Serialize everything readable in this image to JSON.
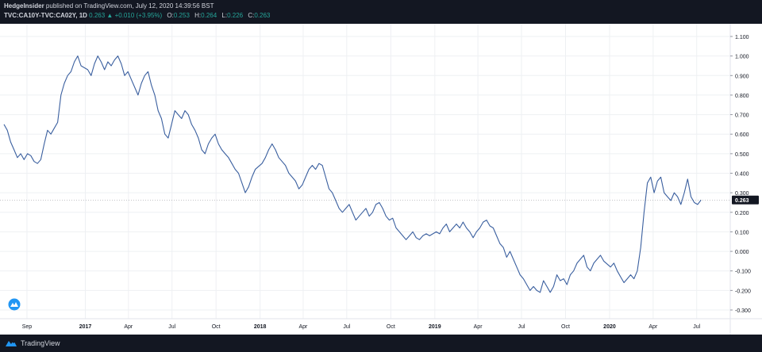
{
  "header": {
    "author": "HedgeInsider",
    "published": "published on TradingView.com, July 12, 2020 14:39:56 BST",
    "symbol": "TVC:CA10Y-TVC:CA02Y, 1D",
    "last": "0.263",
    "change_arrow": "▲",
    "change": "+0.010 (+3.95%)",
    "open_label": "O:",
    "open": "0.253",
    "high_label": "H:",
    "high": "0.264",
    "low_label": "L:",
    "low": "0.226",
    "close_label": "C:",
    "close": "0.263"
  },
  "footer": {
    "brand": "TradingView",
    "logo_icon": "tradingview-logo-icon"
  },
  "colors": {
    "line": "#3a5f9f",
    "up": "#26a69a",
    "price_tag": "#131722",
    "background": "#131722",
    "plot": "#ffffff",
    "grid": "#eef0f3"
  },
  "chart_data": {
    "type": "line",
    "series": [
      {
        "values": [
          [
            "2016-07-15",
            0.65
          ],
          [
            "2016-07-22",
            0.62
          ],
          [
            "2016-07-29",
            0.56
          ],
          [
            "2016-08-05",
            0.52
          ],
          [
            "2016-08-12",
            0.48
          ],
          [
            "2016-08-19",
            0.5
          ],
          [
            "2016-08-26",
            0.47
          ],
          [
            "2016-09-02",
            0.5
          ],
          [
            "2016-09-09",
            0.49
          ],
          [
            "2016-09-16",
            0.46
          ],
          [
            "2016-09-23",
            0.45
          ],
          [
            "2016-09-30",
            0.47
          ],
          [
            "2016-10-07",
            0.55
          ],
          [
            "2016-10-14",
            0.62
          ],
          [
            "2016-10-21",
            0.6
          ],
          [
            "2016-10-28",
            0.63
          ],
          [
            "2016-11-04",
            0.66
          ],
          [
            "2016-11-11",
            0.8
          ],
          [
            "2016-11-18",
            0.86
          ],
          [
            "2016-11-25",
            0.9
          ],
          [
            "2016-12-02",
            0.92
          ],
          [
            "2016-12-09",
            0.97
          ],
          [
            "2016-12-16",
            1.0
          ],
          [
            "2016-12-23",
            0.95
          ],
          [
            "2017-01-06",
            0.93
          ],
          [
            "2017-01-13",
            0.9
          ],
          [
            "2017-01-20",
            0.96
          ],
          [
            "2017-01-27",
            1.0
          ],
          [
            "2017-02-03",
            0.97
          ],
          [
            "2017-02-10",
            0.93
          ],
          [
            "2017-02-17",
            0.97
          ],
          [
            "2017-02-24",
            0.95
          ],
          [
            "2017-03-03",
            0.98
          ],
          [
            "2017-03-10",
            1.0
          ],
          [
            "2017-03-17",
            0.96
          ],
          [
            "2017-03-24",
            0.9
          ],
          [
            "2017-03-31",
            0.92
          ],
          [
            "2017-04-07",
            0.88
          ],
          [
            "2017-04-14",
            0.84
          ],
          [
            "2017-04-21",
            0.8
          ],
          [
            "2017-04-28",
            0.86
          ],
          [
            "2017-05-05",
            0.9
          ],
          [
            "2017-05-12",
            0.92
          ],
          [
            "2017-05-19",
            0.85
          ],
          [
            "2017-05-26",
            0.8
          ],
          [
            "2017-06-02",
            0.72
          ],
          [
            "2017-06-09",
            0.68
          ],
          [
            "2017-06-16",
            0.6
          ],
          [
            "2017-06-23",
            0.58
          ],
          [
            "2017-06-30",
            0.65
          ],
          [
            "2017-07-07",
            0.72
          ],
          [
            "2017-07-14",
            0.7
          ],
          [
            "2017-07-21",
            0.68
          ],
          [
            "2017-07-28",
            0.72
          ],
          [
            "2017-08-04",
            0.7
          ],
          [
            "2017-08-11",
            0.65
          ],
          [
            "2017-08-18",
            0.62
          ],
          [
            "2017-08-25",
            0.58
          ],
          [
            "2017-09-01",
            0.52
          ],
          [
            "2017-09-08",
            0.5
          ],
          [
            "2017-09-15",
            0.55
          ],
          [
            "2017-09-22",
            0.58
          ],
          [
            "2017-09-29",
            0.6
          ],
          [
            "2017-10-06",
            0.55
          ],
          [
            "2017-10-13",
            0.52
          ],
          [
            "2017-10-20",
            0.5
          ],
          [
            "2017-10-27",
            0.48
          ],
          [
            "2017-11-03",
            0.45
          ],
          [
            "2017-11-10",
            0.42
          ],
          [
            "2017-11-17",
            0.4
          ],
          [
            "2017-11-24",
            0.35
          ],
          [
            "2017-12-01",
            0.3
          ],
          [
            "2017-12-08",
            0.33
          ],
          [
            "2017-12-15",
            0.38
          ],
          [
            "2017-12-22",
            0.42
          ],
          [
            "2018-01-05",
            0.45
          ],
          [
            "2018-01-12",
            0.48
          ],
          [
            "2018-01-19",
            0.52
          ],
          [
            "2018-01-26",
            0.55
          ],
          [
            "2018-02-02",
            0.52
          ],
          [
            "2018-02-09",
            0.48
          ],
          [
            "2018-02-16",
            0.46
          ],
          [
            "2018-02-23",
            0.44
          ],
          [
            "2018-03-02",
            0.4
          ],
          [
            "2018-03-09",
            0.38
          ],
          [
            "2018-03-16",
            0.36
          ],
          [
            "2018-03-23",
            0.32
          ],
          [
            "2018-03-30",
            0.34
          ],
          [
            "2018-04-06",
            0.38
          ],
          [
            "2018-04-13",
            0.42
          ],
          [
            "2018-04-20",
            0.44
          ],
          [
            "2018-04-27",
            0.42
          ],
          [
            "2018-05-04",
            0.45
          ],
          [
            "2018-05-11",
            0.44
          ],
          [
            "2018-05-18",
            0.38
          ],
          [
            "2018-05-25",
            0.32
          ],
          [
            "2018-06-01",
            0.3
          ],
          [
            "2018-06-08",
            0.26
          ],
          [
            "2018-06-15",
            0.22
          ],
          [
            "2018-06-22",
            0.2
          ],
          [
            "2018-06-29",
            0.22
          ],
          [
            "2018-07-06",
            0.24
          ],
          [
            "2018-07-13",
            0.2
          ],
          [
            "2018-07-20",
            0.16
          ],
          [
            "2018-07-27",
            0.18
          ],
          [
            "2018-08-03",
            0.2
          ],
          [
            "2018-08-10",
            0.22
          ],
          [
            "2018-08-17",
            0.18
          ],
          [
            "2018-08-24",
            0.2
          ],
          [
            "2018-08-31",
            0.24
          ],
          [
            "2018-09-07",
            0.25
          ],
          [
            "2018-09-14",
            0.22
          ],
          [
            "2018-09-21",
            0.18
          ],
          [
            "2018-09-28",
            0.16
          ],
          [
            "2018-10-05",
            0.17
          ],
          [
            "2018-10-12",
            0.12
          ],
          [
            "2018-10-19",
            0.1
          ],
          [
            "2018-10-26",
            0.08
          ],
          [
            "2018-11-02",
            0.06
          ],
          [
            "2018-11-09",
            0.08
          ],
          [
            "2018-11-16",
            0.1
          ],
          [
            "2018-11-23",
            0.07
          ],
          [
            "2018-11-30",
            0.06
          ],
          [
            "2018-12-07",
            0.08
          ],
          [
            "2018-12-14",
            0.09
          ],
          [
            "2018-12-21",
            0.08
          ],
          [
            "2019-01-04",
            0.1
          ],
          [
            "2019-01-11",
            0.09
          ],
          [
            "2019-01-18",
            0.12
          ],
          [
            "2019-01-25",
            0.14
          ],
          [
            "2019-02-01",
            0.1
          ],
          [
            "2019-02-08",
            0.12
          ],
          [
            "2019-02-15",
            0.14
          ],
          [
            "2019-02-22",
            0.12
          ],
          [
            "2019-03-01",
            0.15
          ],
          [
            "2019-03-08",
            0.12
          ],
          [
            "2019-03-15",
            0.1
          ],
          [
            "2019-03-22",
            0.07
          ],
          [
            "2019-03-29",
            0.1
          ],
          [
            "2019-04-05",
            0.12
          ],
          [
            "2019-04-12",
            0.15
          ],
          [
            "2019-04-19",
            0.16
          ],
          [
            "2019-04-26",
            0.13
          ],
          [
            "2019-05-03",
            0.12
          ],
          [
            "2019-05-10",
            0.08
          ],
          [
            "2019-05-17",
            0.04
          ],
          [
            "2019-05-24",
            0.02
          ],
          [
            "2019-05-31",
            -0.03
          ],
          [
            "2019-06-07",
            0.0
          ],
          [
            "2019-06-14",
            -0.04
          ],
          [
            "2019-06-21",
            -0.08
          ],
          [
            "2019-06-28",
            -0.12
          ],
          [
            "2019-07-05",
            -0.14
          ],
          [
            "2019-07-12",
            -0.17
          ],
          [
            "2019-07-19",
            -0.2
          ],
          [
            "2019-07-26",
            -0.18
          ],
          [
            "2019-08-02",
            -0.2
          ],
          [
            "2019-08-09",
            -0.21
          ],
          [
            "2019-08-16",
            -0.15
          ],
          [
            "2019-08-23",
            -0.18
          ],
          [
            "2019-08-30",
            -0.21
          ],
          [
            "2019-09-06",
            -0.18
          ],
          [
            "2019-09-13",
            -0.12
          ],
          [
            "2019-09-20",
            -0.15
          ],
          [
            "2019-09-27",
            -0.14
          ],
          [
            "2019-10-04",
            -0.17
          ],
          [
            "2019-10-11",
            -0.12
          ],
          [
            "2019-10-18",
            -0.1
          ],
          [
            "2019-10-25",
            -0.06
          ],
          [
            "2019-11-01",
            -0.04
          ],
          [
            "2019-11-08",
            -0.02
          ],
          [
            "2019-11-15",
            -0.08
          ],
          [
            "2019-11-22",
            -0.1
          ],
          [
            "2019-11-29",
            -0.06
          ],
          [
            "2019-12-06",
            -0.04
          ],
          [
            "2019-12-13",
            -0.02
          ],
          [
            "2019-12-20",
            -0.05
          ],
          [
            "2020-01-03",
            -0.08
          ],
          [
            "2020-01-10",
            -0.06
          ],
          [
            "2020-01-17",
            -0.1
          ],
          [
            "2020-01-24",
            -0.13
          ],
          [
            "2020-01-31",
            -0.16
          ],
          [
            "2020-02-07",
            -0.14
          ],
          [
            "2020-02-14",
            -0.12
          ],
          [
            "2020-02-21",
            -0.14
          ],
          [
            "2020-02-28",
            -0.1
          ],
          [
            "2020-03-06",
            0.02
          ],
          [
            "2020-03-13",
            0.2
          ],
          [
            "2020-03-20",
            0.35
          ],
          [
            "2020-03-27",
            0.38
          ],
          [
            "2020-04-03",
            0.3
          ],
          [
            "2020-04-10",
            0.36
          ],
          [
            "2020-04-17",
            0.38
          ],
          [
            "2020-04-24",
            0.3
          ],
          [
            "2020-05-01",
            0.28
          ],
          [
            "2020-05-08",
            0.26
          ],
          [
            "2020-05-15",
            0.3
          ],
          [
            "2020-05-22",
            0.28
          ],
          [
            "2020-05-29",
            0.24
          ],
          [
            "2020-06-05",
            0.3
          ],
          [
            "2020-06-12",
            0.37
          ],
          [
            "2020-06-19",
            0.28
          ],
          [
            "2020-06-26",
            0.25
          ],
          [
            "2020-07-03",
            0.24
          ],
          [
            "2020-07-10",
            0.263
          ]
        ]
      }
    ],
    "x_ticks": [
      {
        "date": "2016-09-01",
        "label": "Sep"
      },
      {
        "date": "2017-01-01",
        "label": "2017"
      },
      {
        "date": "2017-04-01",
        "label": "Apr"
      },
      {
        "date": "2017-07-01",
        "label": "Jul"
      },
      {
        "date": "2017-10-01",
        "label": "Oct"
      },
      {
        "date": "2018-01-01",
        "label": "2018"
      },
      {
        "date": "2018-04-01",
        "label": "Apr"
      },
      {
        "date": "2018-07-01",
        "label": "Jul"
      },
      {
        "date": "2018-10-01",
        "label": "Oct"
      },
      {
        "date": "2019-01-01",
        "label": "2019"
      },
      {
        "date": "2019-04-01",
        "label": "Apr"
      },
      {
        "date": "2019-07-01",
        "label": "Jul"
      },
      {
        "date": "2019-10-01",
        "label": "Oct"
      },
      {
        "date": "2020-01-01",
        "label": "2020"
      },
      {
        "date": "2020-04-01",
        "label": "Apr"
      },
      {
        "date": "2020-07-01",
        "label": "Jul"
      }
    ],
    "y_ticks": [
      "1.100",
      "1.000",
      "0.900",
      "0.800",
      "0.700",
      "0.600",
      "0.500",
      "0.400",
      "0.300",
      "0.200",
      "0.100",
      "0.000",
      "-0.100",
      "-0.200",
      "-0.300"
    ],
    "ylim": [
      -0.3,
      1.1
    ],
    "xlim": [
      "2016-07-15",
      "2020-08-31"
    ],
    "last_value_label": "0.263",
    "grid": true,
    "title": "",
    "xlabel": "",
    "ylabel": ""
  }
}
